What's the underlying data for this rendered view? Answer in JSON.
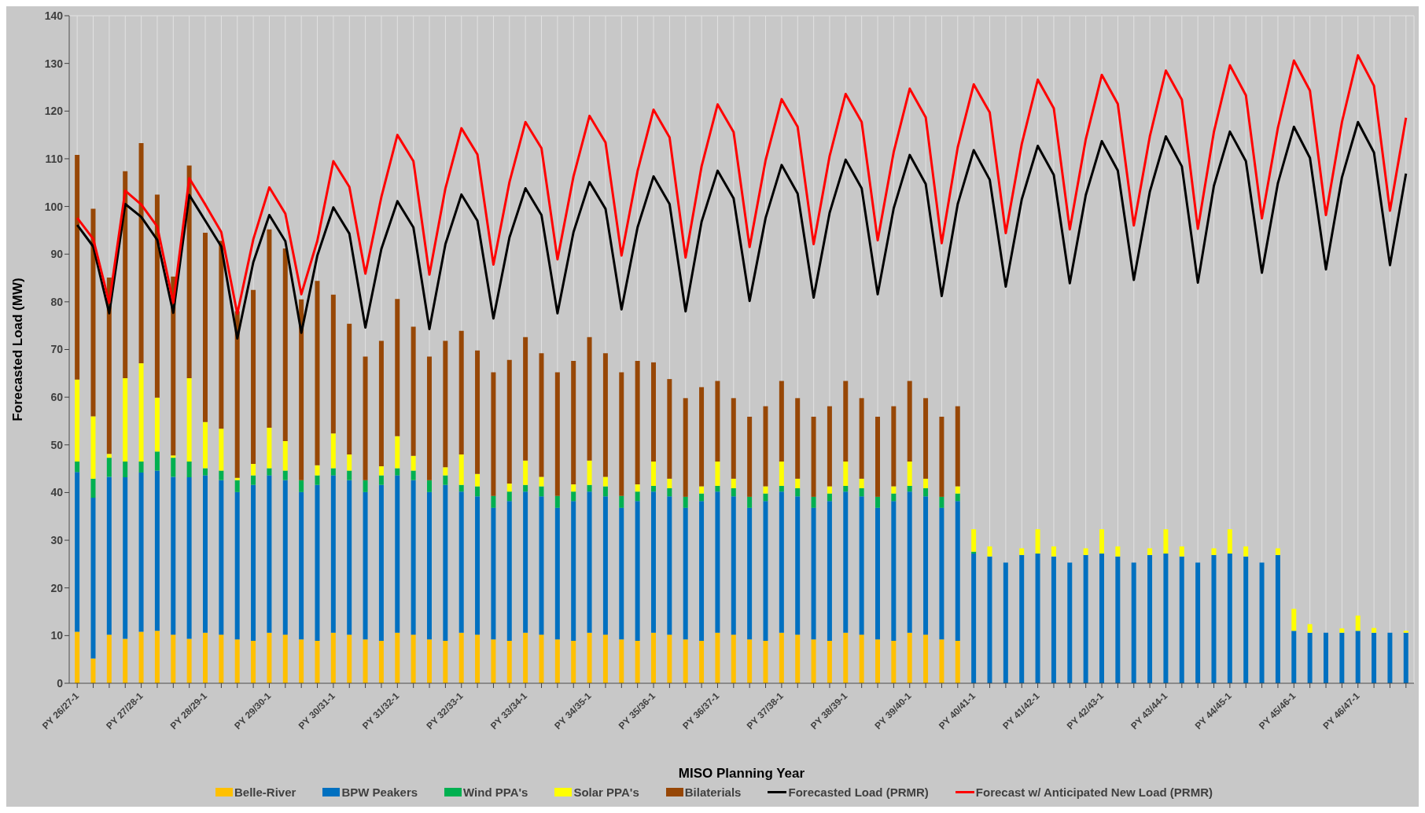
{
  "chart_data": {
    "type": "bar",
    "stacked": true,
    "xlabel": "MISO Planning Year",
    "ylabel": "Forecasted Load (MW)",
    "ylim": [
      0,
      140
    ],
    "yticks": [
      0,
      10,
      20,
      30,
      40,
      50,
      60,
      70,
      80,
      90,
      100,
      110,
      120,
      130,
      140
    ],
    "grid": true,
    "legend": "bottom",
    "categories": [
      "PY 26/27-1",
      null,
      null,
      null,
      "PY 27/28-1",
      null,
      null,
      null,
      "PY 28/29-1",
      null,
      null,
      null,
      "PY 29/30-1",
      null,
      null,
      null,
      "PY 30/31-1",
      null,
      null,
      null,
      "PY 31/32-1",
      null,
      null,
      null,
      "PY 32/33-1",
      null,
      null,
      null,
      "PY 33/34-1",
      null,
      null,
      null,
      "PY 34/35-1",
      null,
      null,
      null,
      "PY 35/36-1",
      null,
      null,
      null,
      "PY 36/37-1",
      null,
      null,
      null,
      "PY 37/38-1",
      null,
      null,
      null,
      "PY 38/39-1",
      null,
      null,
      null,
      "PY 39/40-1",
      null,
      null,
      null,
      "PY 40/41-1",
      null,
      null,
      null,
      "PY 41/42-1",
      null,
      null,
      null,
      "PY 42/43-1",
      null,
      null,
      null,
      "PY 43/44-1",
      null,
      null,
      null,
      "PY 44/45-1",
      null,
      null,
      null,
      "PY 45/46-1",
      null,
      null,
      null,
      "PY 46/47-1",
      null,
      null,
      null
    ],
    "series": [
      {
        "name": "Belle-River",
        "color": "#ffc000",
        "values": [
          10.8,
          5.2,
          10.2,
          9.3,
          10.8,
          11.0,
          10.2,
          9.3,
          10.6,
          10.2,
          9.2,
          8.9,
          10.6,
          10.2,
          9.2,
          8.9,
          10.6,
          10.2,
          9.2,
          8.9,
          10.6,
          10.2,
          9.2,
          8.9,
          10.6,
          10.2,
          9.2,
          8.9,
          10.6,
          10.2,
          9.2,
          8.9,
          10.6,
          10.2,
          9.2,
          8.9,
          10.6,
          10.2,
          9.2,
          8.9,
          10.6,
          10.2,
          9.2,
          8.9,
          10.6,
          10.2,
          9.2,
          8.9,
          10.6,
          10.2,
          9.2,
          8.9,
          10.6,
          10.2,
          9.2,
          8.9,
          null,
          null,
          null,
          null,
          null,
          null,
          null,
          null,
          null,
          null,
          null,
          null,
          null,
          null,
          null,
          null,
          null,
          null,
          null,
          null,
          null,
          null,
          null,
          null,
          null,
          null,
          null,
          null
        ]
      },
      {
        "name": "BPW Peakers",
        "color": "#0070c0",
        "values": [
          33.5,
          33.7,
          33.1,
          33.9,
          33.4,
          33.6,
          33.1,
          33.9,
          33.0,
          32.4,
          30.9,
          32.7,
          33.0,
          32.4,
          30.9,
          32.7,
          33.0,
          32.4,
          30.9,
          32.7,
          33.0,
          32.4,
          30.9,
          32.7,
          29.6,
          29.0,
          27.6,
          29.3,
          29.6,
          29.0,
          27.6,
          29.3,
          29.6,
          29.0,
          27.6,
          29.3,
          29.6,
          29.0,
          27.6,
          29.3,
          29.6,
          29.0,
          27.6,
          29.3,
          29.6,
          29.0,
          27.6,
          29.3,
          29.6,
          29.0,
          27.6,
          29.3,
          29.6,
          29.0,
          27.6,
          29.3,
          27.2,
          26.6,
          25.3,
          26.9,
          27.2,
          26.6,
          25.3,
          26.9,
          27.2,
          26.6,
          25.3,
          26.9,
          27.2,
          26.6,
          25.3,
          26.9,
          27.2,
          26.6,
          25.3,
          26.9,
          11.0,
          10.6,
          10.6,
          10.6,
          11.0,
          10.6,
          10.6,
          10.6
        ]
      },
      {
        "name": "Wind PPA's",
        "color": "#00b050",
        "values": [
          2.2,
          4.0,
          4.0,
          3.3,
          2.3,
          4.0,
          4.0,
          3.3,
          1.5,
          2.0,
          2.5,
          2.0,
          1.5,
          2.0,
          2.5,
          2.0,
          1.5,
          2.0,
          2.5,
          2.0,
          1.5,
          2.0,
          2.5,
          2.0,
          1.4,
          2.1,
          2.5,
          2.0,
          1.4,
          2.1,
          2.5,
          2.0,
          1.4,
          2.1,
          2.5,
          2.0,
          1.2,
          1.7,
          2.3,
          1.6,
          1.2,
          1.7,
          2.3,
          1.6,
          1.2,
          1.7,
          2.3,
          1.6,
          1.2,
          1.7,
          2.3,
          1.6,
          1.2,
          1.7,
          2.3,
          1.6,
          0.4,
          null,
          null,
          null,
          null,
          null,
          null,
          null,
          null,
          null,
          null,
          null,
          null,
          null,
          null,
          null,
          null,
          null,
          null,
          null,
          null,
          null,
          null,
          null,
          null,
          null,
          null,
          null
        ]
      },
      {
        "name": "Solar PPA's",
        "color": "#ffff00",
        "values": [
          17.2,
          13.1,
          0.8,
          17.5,
          20.6,
          11.3,
          0.5,
          17.5,
          9.7,
          8.8,
          0.5,
          2.4,
          8.5,
          6.2,
          null,
          2.1,
          7.3,
          3.4,
          null,
          1.9,
          6.7,
          3.1,
          null,
          1.7,
          6.4,
          2.6,
          null,
          1.7,
          5.1,
          2.0,
          null,
          1.5,
          5.1,
          2.0,
          null,
          1.5,
          5.1,
          2.0,
          null,
          1.5,
          5.1,
          2.0,
          null,
          1.5,
          5.1,
          2.0,
          null,
          1.5,
          5.1,
          2.0,
          null,
          1.5,
          5.1,
          2.0,
          null,
          1.5,
          4.7,
          2.1,
          null,
          1.4,
          5.1,
          2.1,
          null,
          1.4,
          5.1,
          2.1,
          null,
          1.4,
          5.1,
          2.1,
          null,
          1.4,
          5.1,
          2.1,
          null,
          1.4,
          4.6,
          1.8,
          null,
          0.9,
          3.2,
          1.0,
          null,
          0.4
        ]
      },
      {
        "name": "Bilaterials",
        "color": "#974706",
        "values": [
          47.1,
          43.5,
          37.0,
          43.4,
          46.2,
          42.6,
          37.5,
          44.6,
          39.7,
          39.4,
          34.9,
          36.5,
          41.6,
          40.4,
          37.9,
          38.7,
          29.1,
          27.4,
          25.9,
          26.3,
          28.8,
          27.1,
          25.9,
          26.5,
          25.9,
          25.9,
          25.9,
          25.9,
          25.9,
          25.9,
          25.9,
          25.9,
          25.9,
          25.9,
          25.9,
          25.9,
          20.8,
          20.9,
          20.7,
          20.8,
          16.9,
          16.9,
          16.8,
          16.8,
          16.9,
          16.9,
          16.8,
          16.8,
          16.9,
          16.9,
          16.8,
          16.8,
          16.9,
          16.9,
          16.8,
          16.8,
          null,
          null,
          null,
          null,
          null,
          null,
          null,
          null,
          null,
          null,
          null,
          null,
          null,
          null,
          null,
          null,
          null,
          null,
          null,
          null,
          null,
          null,
          null,
          null,
          null,
          null,
          null,
          null
        ]
      },
      {
        "name": "Forecasted Load (PRMR)",
        "type": "line",
        "color": "#000000",
        "values": [
          96.1,
          91.6,
          77.6,
          100.5,
          97.8,
          93.0,
          77.7,
          102.4,
          97.0,
          91.6,
          72.3,
          88.3,
          98.2,
          92.7,
          73.5,
          89.7,
          99.8,
          94.3,
          74.6,
          91.1,
          101.1,
          95.6,
          74.3,
          92.1,
          102.5,
          97.0,
          76.5,
          93.5,
          103.8,
          98.2,
          77.6,
          94.6,
          105.1,
          99.5,
          78.4,
          95.6,
          106.3,
          100.5,
          78.0,
          96.8,
          107.5,
          101.7,
          80.2,
          97.6,
          108.7,
          102.7,
          80.9,
          98.7,
          109.8,
          103.8,
          81.6,
          99.6,
          110.8,
          104.7,
          81.2,
          100.5,
          111.8,
          105.6,
          83.2,
          101.5,
          112.7,
          106.6,
          83.9,
          102.4,
          113.7,
          107.5,
          84.6,
          103.1,
          114.7,
          108.4,
          84.0,
          104.3,
          115.7,
          109.5,
          86.1,
          104.9,
          116.7,
          110.2,
          86.8,
          106.1,
          117.7,
          111.3,
          87.7,
          106.9
        ]
      },
      {
        "name": "Forecast w/ Anticipated New Load (PRMR)",
        "type": "line",
        "color": "#ff0000",
        "values": [
          97.6,
          93.2,
          79.8,
          103.3,
          100.4,
          95.8,
          79.8,
          105.9,
          100.4,
          94.6,
          77.5,
          93.1,
          104.0,
          98.5,
          81.6,
          92.8,
          109.5,
          104.1,
          85.9,
          102.0,
          115.0,
          109.5,
          85.7,
          103.8,
          116.4,
          110.9,
          87.8,
          105.1,
          117.7,
          112.2,
          88.9,
          106.3,
          119.0,
          113.4,
          89.7,
          107.4,
          120.3,
          114.5,
          89.3,
          108.4,
          121.4,
          115.6,
          91.5,
          109.7,
          122.5,
          116.7,
          92.1,
          110.6,
          123.6,
          117.7,
          92.9,
          111.4,
          124.7,
          118.7,
          92.3,
          112.4,
          125.6,
          119.7,
          94.4,
          113.1,
          126.6,
          120.6,
          95.2,
          114.1,
          127.6,
          121.5,
          96.0,
          114.7,
          128.5,
          122.4,
          95.3,
          115.6,
          129.6,
          123.3,
          97.5,
          116.5,
          130.6,
          124.3,
          98.2,
          117.7,
          131.7,
          125.3,
          99.1,
          118.6
        ]
      }
    ]
  }
}
